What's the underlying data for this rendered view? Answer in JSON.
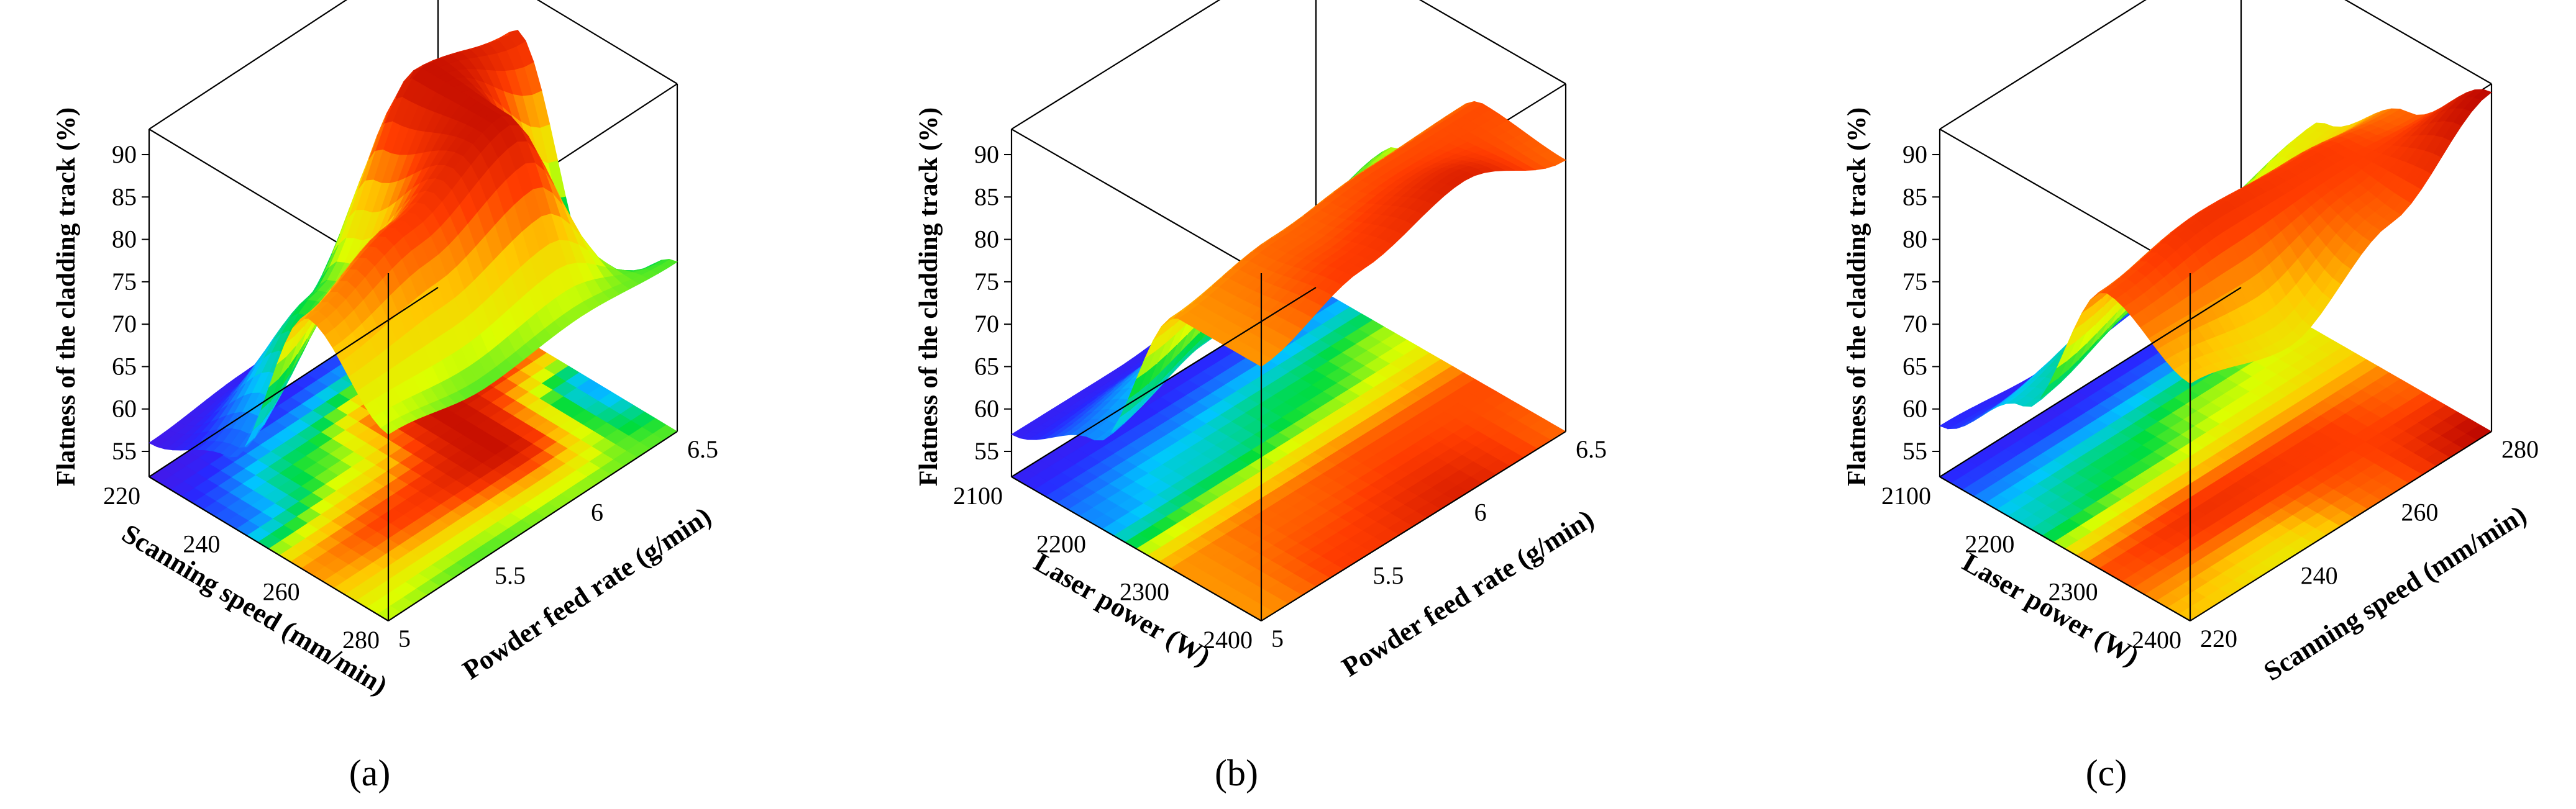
{
  "figure": {
    "panel_labels": [
      "(a)",
      "(b)",
      "(c)"
    ]
  },
  "chart_data": [
    {
      "type": "surface3d",
      "panel": "(a)",
      "zlabel": "Flatness of the cladding track (%)",
      "xlabel": "Scanning speed (mm/min)",
      "ylabel": "Powder feed rate (g/min)",
      "xticks": [
        "220",
        "240",
        "260",
        "280"
      ],
      "yticks": [
        "5",
        "5.5",
        "6",
        "6.5"
      ],
      "zticks": [
        "55",
        "60",
        "65",
        "70",
        "75",
        "80",
        "85",
        "90"
      ],
      "xlim": [
        220,
        280
      ],
      "ylim": [
        5,
        6.5
      ],
      "zlim": [
        52,
        93
      ],
      "grid": {
        "x": [
          220,
          240,
          260,
          280
        ],
        "y": [
          5,
          5.5,
          6,
          6.5
        ],
        "z": [
          [
            56,
            57,
            59,
            60
          ],
          [
            60,
            72,
            91,
            88
          ],
          [
            82,
            86,
            91,
            63
          ],
          [
            74,
            72,
            73,
            72
          ]
        ]
      },
      "colormap": "rainbow"
    },
    {
      "type": "surface3d",
      "panel": "(b)",
      "zlabel": "Flatness of the cladding track (%)",
      "xlabel": "Laser power (W)",
      "ylabel": "Powder feed rate (g/min)",
      "xticks": [
        "2100",
        "2200",
        "2300",
        "2400"
      ],
      "yticks": [
        "5",
        "5.5",
        "6",
        "6.5"
      ],
      "zticks": [
        "55",
        "60",
        "65",
        "70",
        "75",
        "80",
        "85",
        "90"
      ],
      "xlim": [
        2100,
        2400
      ],
      "ylim": [
        5,
        6.5
      ],
      "zlim": [
        52,
        93
      ],
      "grid": {
        "x": [
          2100,
          2200,
          2300,
          2400
        ],
        "y": [
          5,
          5.5,
          6,
          6.5
        ],
        "z": [
          [
            57,
            57,
            58,
            60
          ],
          [
            62,
            66,
            70,
            74
          ],
          [
            82,
            84,
            85,
            85
          ],
          [
            82,
            86,
            89,
            84
          ]
        ]
      },
      "colormap": "rainbow"
    },
    {
      "type": "surface3d",
      "panel": "(c)",
      "zlabel": "Flatness of the cladding track (%)",
      "xlabel": "Laser power (W)",
      "ylabel": "Scanning speed (mm/min)",
      "xticks": [
        "2100",
        "2200",
        "2300",
        "2400"
      ],
      "yticks": [
        "220",
        "240",
        "260",
        "280"
      ],
      "zticks": [
        "55",
        "60",
        "65",
        "70",
        "75",
        "80",
        "85",
        "90"
      ],
      "xlim": [
        2100,
        2400
      ],
      "ylim": [
        220,
        280
      ],
      "zlim": [
        52,
        93
      ],
      "grid": {
        "x": [
          2100,
          2200,
          2300,
          2400
        ],
        "y": [
          220,
          240,
          260,
          280
        ],
        "z": [
          [
            58,
            57,
            58,
            59
          ],
          [
            66,
            70,
            74,
            77
          ],
          [
            85,
            87,
            86,
            84
          ],
          [
            80,
            77,
            84,
            92
          ]
        ]
      },
      "colormap": "rainbow"
    }
  ]
}
